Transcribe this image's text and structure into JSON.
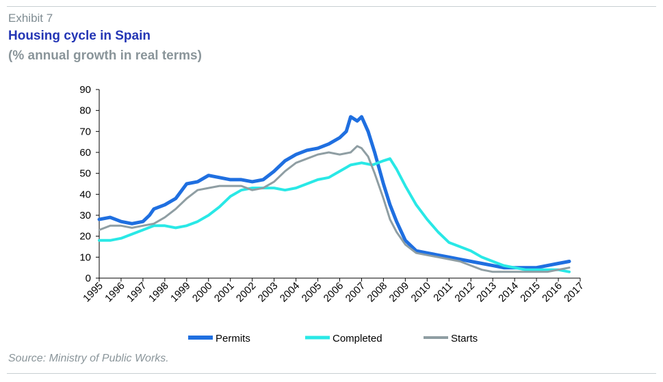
{
  "header": {
    "exhibit": "Exhibit 7",
    "title": "Housing cycle in Spain",
    "subtitle": "(% annual growth in real terms)"
  },
  "footer": {
    "source": "Source: Ministry of Public Works."
  },
  "chart_data": {
    "type": "line",
    "title": "Housing cycle in Spain",
    "subtitle": "(% annual growth in real terms)",
    "xlabel": "",
    "ylabel": "",
    "xlim": [
      1995,
      2017
    ],
    "ylim": [
      0,
      90
    ],
    "yticks": [
      0,
      10,
      20,
      30,
      40,
      50,
      60,
      70,
      80,
      90
    ],
    "xticks": [
      "1995",
      "1996",
      "1997",
      "1998",
      "1999",
      "2000",
      "2001",
      "2002",
      "2003",
      "2004",
      "2005",
      "2006",
      "2007",
      "2008",
      "2009",
      "2010",
      "2011",
      "2012",
      "2013",
      "2014",
      "2015",
      "2016",
      "2017"
    ],
    "grid": false,
    "legend_position": "bottom",
    "series": [
      {
        "name": "Permits",
        "color": "#1f6fe0",
        "x": [
          1995,
          1995.5,
          1996,
          1996.5,
          1997,
          1997.3,
          1997.5,
          1998,
          1998.5,
          1999,
          1999.5,
          2000,
          2000.5,
          2001,
          2001.5,
          2002,
          2002.5,
          2003,
          2003.5,
          2004,
          2004.5,
          2005,
          2005.5,
          2006,
          2006.3,
          2006.5,
          2006.8,
          2007,
          2007.3,
          2007.6,
          2008,
          2008.3,
          2008.6,
          2009,
          2009.5,
          2010,
          2010.5,
          2011,
          2011.5,
          2012,
          2012.5,
          2013,
          2013.5,
          2014,
          2014.5,
          2015,
          2015.5,
          2016,
          2016.5
        ],
        "values": [
          28,
          29,
          27,
          26,
          27,
          30,
          33,
          35,
          38,
          45,
          46,
          49,
          48,
          47,
          47,
          46,
          47,
          51,
          56,
          59,
          61,
          62,
          64,
          67,
          70,
          77,
          75,
          77,
          70,
          60,
          45,
          35,
          27,
          18,
          13,
          12,
          11,
          10,
          9,
          8,
          7,
          6,
          5,
          5,
          5,
          5,
          6,
          7,
          8
        ]
      },
      {
        "name": "Completed",
        "color": "#29e8e6",
        "x": [
          1995,
          1995.5,
          1996,
          1996.5,
          1997,
          1997.5,
          1998,
          1998.5,
          1999,
          1999.5,
          2000,
          2000.5,
          2001,
          2001.5,
          2002,
          2002.5,
          2003,
          2003.5,
          2004,
          2004.5,
          2005,
          2005.5,
          2006,
          2006.5,
          2007,
          2007.5,
          2008,
          2008.3,
          2008.6,
          2009,
          2009.5,
          2010,
          2010.5,
          2011,
          2011.5,
          2012,
          2012.5,
          2013,
          2013.5,
          2014,
          2014.5,
          2015,
          2015.5,
          2016,
          2016.5
        ],
        "values": [
          18,
          18,
          19,
          21,
          23,
          25,
          25,
          24,
          25,
          27,
          30,
          34,
          39,
          42,
          43,
          43,
          43,
          42,
          43,
          45,
          47,
          48,
          51,
          54,
          55,
          54,
          56,
          57,
          52,
          44,
          35,
          28,
          22,
          17,
          15,
          13,
          10,
          8,
          6,
          5,
          4,
          4,
          4,
          4,
          3
        ]
      },
      {
        "name": "Starts",
        "color": "#8f9ea3",
        "x": [
          1995,
          1995.5,
          1996,
          1996.5,
          1997,
          1997.5,
          1998,
          1998.5,
          1999,
          1999.5,
          2000,
          2000.5,
          2001,
          2001.5,
          2002,
          2002.5,
          2003,
          2003.5,
          2004,
          2004.5,
          2005,
          2005.5,
          2006,
          2006.5,
          2006.8,
          2007,
          2007.3,
          2007.6,
          2008,
          2008.3,
          2008.6,
          2009,
          2009.5,
          2010,
          2010.5,
          2011,
          2011.5,
          2012,
          2012.5,
          2013,
          2013.5,
          2014,
          2014.5,
          2015,
          2015.5,
          2016,
          2016.5
        ],
        "values": [
          23,
          25,
          25,
          24,
          25,
          26,
          29,
          33,
          38,
          42,
          43,
          44,
          44,
          44,
          42,
          43,
          46,
          51,
          55,
          57,
          59,
          60,
          59,
          60,
          63,
          62,
          58,
          50,
          38,
          28,
          22,
          16,
          12,
          11,
          10,
          9,
          8,
          6,
          4,
          3,
          3,
          3,
          3,
          3,
          3,
          4,
          5
        ]
      }
    ]
  }
}
